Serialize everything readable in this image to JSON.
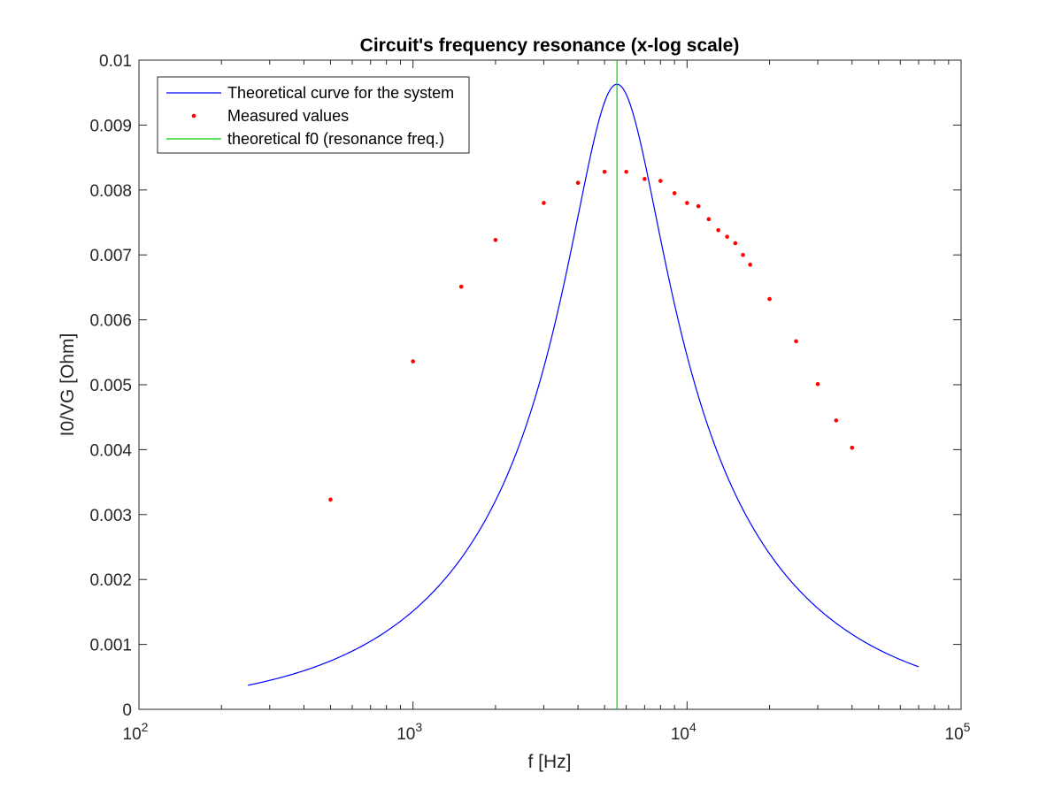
{
  "chart_data": {
    "type": "line",
    "title": "Circuit's frequency resonance (x-log scale)",
    "xlabel": "f [Hz]",
    "ylabel": "I0/VG [Ohm]",
    "xscale": "log",
    "xlim": [
      100,
      100000
    ],
    "ylim": [
      0,
      0.01
    ],
    "grid": false,
    "legend_position": "top-left",
    "x_ticks": [
      {
        "value": 100,
        "base": "10",
        "exp": "2"
      },
      {
        "value": 1000,
        "base": "10",
        "exp": "3"
      },
      {
        "value": 10000,
        "base": "10",
        "exp": "4"
      },
      {
        "value": 100000,
        "base": "10",
        "exp": "5"
      }
    ],
    "y_ticks": [
      {
        "value": 0,
        "label": "0"
      },
      {
        "value": 0.001,
        "label": "0.001"
      },
      {
        "value": 0.002,
        "label": "0.002"
      },
      {
        "value": 0.003,
        "label": "0.003"
      },
      {
        "value": 0.004,
        "label": "0.004"
      },
      {
        "value": 0.005,
        "label": "0.005"
      },
      {
        "value": 0.006,
        "label": "0.006"
      },
      {
        "value": 0.007,
        "label": "0.007"
      },
      {
        "value": 0.008,
        "label": "0.008"
      },
      {
        "value": 0.009,
        "label": "0.009"
      },
      {
        "value": 0.01,
        "label": "0.01"
      }
    ],
    "series": [
      {
        "name": "Theoretical curve for the system",
        "kind": "line",
        "color": "#0000FF",
        "model": {
          "peak": 0.00963,
          "f0": 5550,
          "q_factor": 1.17,
          "f_min": 250,
          "f_max": 70000
        }
      },
      {
        "name": "Measured values",
        "kind": "scatter",
        "color": "#FF0000",
        "x": [
          500,
          1000,
          1500,
          2000,
          3000,
          4000,
          5000,
          6000,
          7000,
          8000,
          9000,
          10000,
          11000,
          12000,
          13000,
          14000,
          15000,
          16000,
          17000,
          20000,
          25000,
          30000,
          35000,
          40000
        ],
        "y": [
          0.00323,
          0.00536,
          0.00651,
          0.00723,
          0.0078,
          0.00811,
          0.00828,
          0.00828,
          0.00817,
          0.00814,
          0.00795,
          0.0078,
          0.00775,
          0.00755,
          0.00738,
          0.00728,
          0.00718,
          0.007,
          0.00685,
          0.00632,
          0.00567,
          0.00501,
          0.00445,
          0.00403
        ]
      },
      {
        "name": "theoretical f0 (resonance freq.)",
        "kind": "vline",
        "color": "#00D000",
        "x": 5550
      }
    ]
  }
}
